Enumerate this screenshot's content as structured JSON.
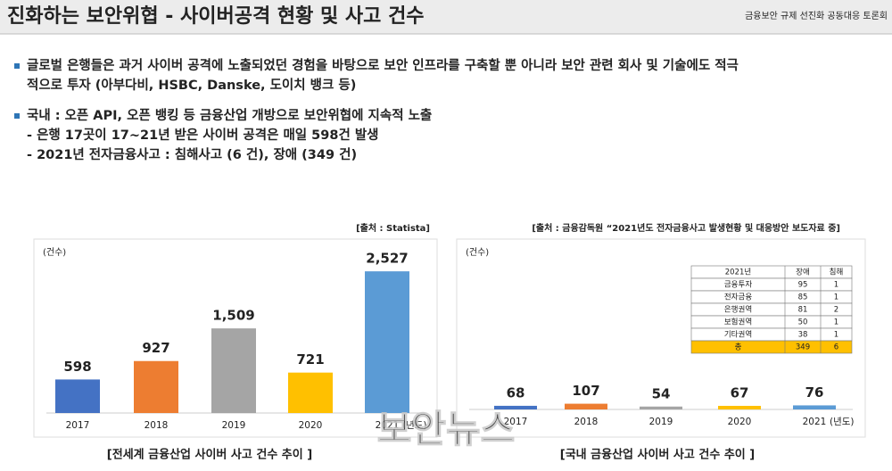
{
  "header": {
    "title": "진화하는 보안위협 - 사이버공격 현황 및 사고 건수",
    "event": "금융보안 규제 선진화 공동대응 토론회"
  },
  "bullets": [
    {
      "lines": [
        "글로벌 은행들은 과거 사이버 공격에 노출되었던 경험을 바탕으로 보안 인프라를 구축할 뿐 아니라 보안 관련 회사 및 기술에도 적극",
        "적으로 투자 (아부다비, HSBC, Danske, 도이치 뱅크 등)"
      ],
      "subs": []
    },
    {
      "lines": [
        "국내 : 오픈 API, 오픈 뱅킹 등 금융산업 개방으로 보안위협에 지속적 노출"
      ],
      "subs": [
        "- 은행 17곳이 17~21년 받은 사이버 공격은 매일 598건 발생",
        "- 2021년 전자금융사고 : 침해사고 (6 건), 장애 (349 건)"
      ]
    }
  ],
  "chart_data": [
    {
      "type": "bar",
      "source": "[출처 : Statista]",
      "caption": "[전세계 금융산업 사이버 사고 건수 추이 ]",
      "y_label": "(건수)",
      "x_unit": "(년도)",
      "categories": [
        "2017",
        "2018",
        "2019",
        "2020",
        "2021"
      ],
      "values": [
        598,
        927,
        1509,
        721,
        2527
      ],
      "value_labels": [
        "598",
        "927",
        "1,509",
        "721",
        "2,527"
      ],
      "colors": [
        "#4472c4",
        "#ed7d31",
        "#a5a5a5",
        "#ffc000",
        "#5b9bd5"
      ],
      "ylim": [
        0,
        2800
      ]
    },
    {
      "type": "bar",
      "source": "[출처 : 금융감독원 “2021년도 전자금융사고 발생현황 및 대응방안 보도자료 중]",
      "caption": "[국내 금융산업 사이버 사고 건수 추이 ]",
      "y_label": "(건수)",
      "x_unit": "(년도)",
      "categories": [
        "2017",
        "2018",
        "2019",
        "2020",
        "2021"
      ],
      "values": [
        68,
        107,
        54,
        67,
        76
      ],
      "colors": [
        "#4472c4",
        "#ed7d31",
        "#a5a5a5",
        "#ffc000",
        "#5b9bd5"
      ],
      "ylim": [
        0,
        2000
      ]
    }
  ],
  "table": {
    "header": [
      "2021년",
      "장애",
      "침해"
    ],
    "rows": [
      [
        "금융투자",
        "95",
        "1"
      ],
      [
        "전자금융",
        "85",
        "1"
      ],
      [
        "은행권역",
        "81",
        "2"
      ],
      [
        "보험권역",
        "50",
        "1"
      ],
      [
        "기타권역",
        "38",
        "1"
      ],
      [
        "총",
        "349",
        "6"
      ]
    ]
  },
  "watermark": "보안뉴스"
}
